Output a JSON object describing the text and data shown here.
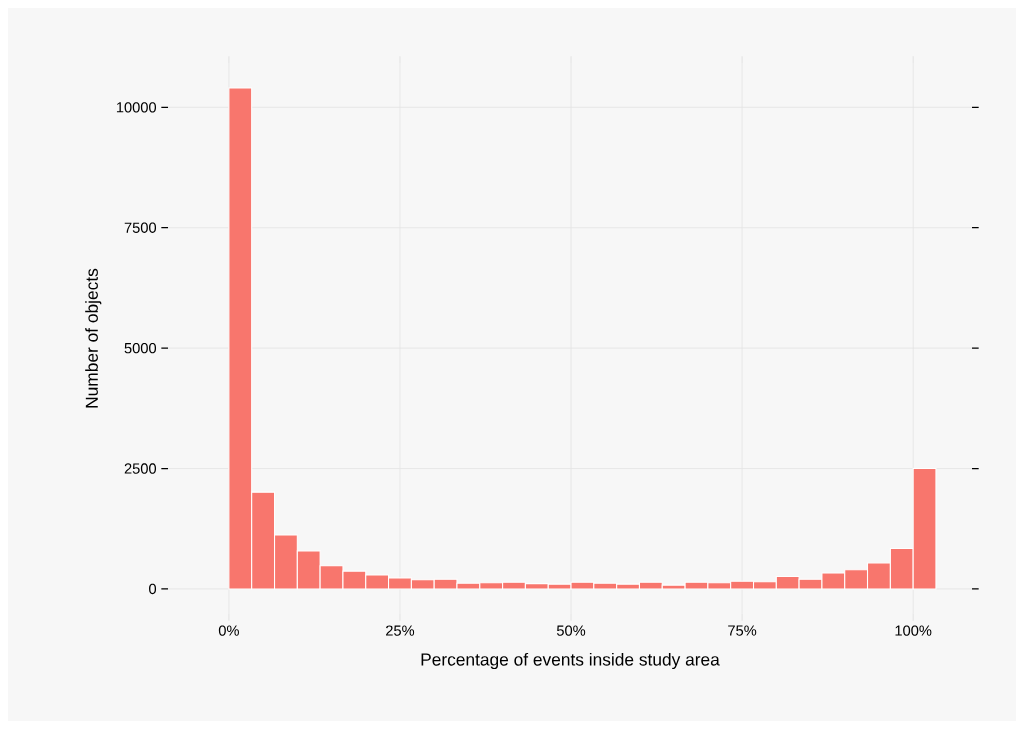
{
  "chart_data": {
    "type": "histogram",
    "xlabel": "Percentage of events inside study area",
    "ylabel": "Number of objects",
    "bins": [
      0,
      3.33,
      6.67,
      10,
      13.33,
      16.67,
      20,
      23.33,
      26.67,
      30,
      33.33,
      36.67,
      40,
      43.33,
      46.67,
      50,
      53.33,
      56.67,
      60,
      63.33,
      66.67,
      70,
      73.33,
      76.67,
      80,
      83.33,
      86.67,
      90,
      93.33,
      96.67,
      100,
      103.33
    ],
    "values": [
      10400,
      2010,
      1120,
      790,
      480,
      370,
      290,
      230,
      190,
      200,
      120,
      130,
      140,
      110,
      100,
      140,
      120,
      100,
      140,
      80,
      140,
      130,
      160,
      150,
      260,
      200,
      330,
      400,
      540,
      840,
      2500
    ],
    "color": "#f8766d",
    "xlim": [
      -8.9,
      108.6
    ],
    "ylim": [
      -520,
      10920
    ],
    "xticks": [
      {
        "value": 0,
        "label": "0%"
      },
      {
        "value": 25,
        "label": "25%"
      },
      {
        "value": 50,
        "label": "50%"
      },
      {
        "value": 75,
        "label": "75%"
      },
      {
        "value": 100,
        "label": "100%"
      }
    ],
    "yticks": [
      0,
      2500,
      5000,
      7500,
      10000
    ],
    "grid": true
  }
}
